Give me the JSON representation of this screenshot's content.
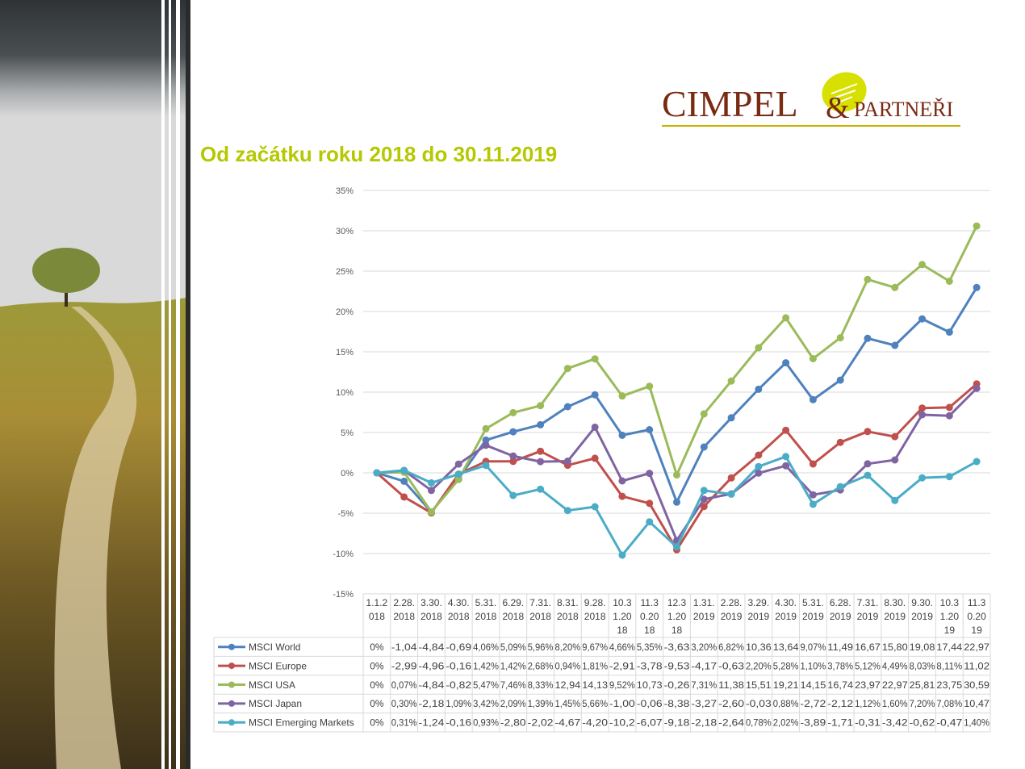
{
  "title": "Od začátku roku 2018 do 30.11.2019",
  "logo": {
    "name_main": "CIMPEL",
    "amp": "&",
    "name_sub": "PARTNEŘI"
  },
  "colors": {
    "accent": "#b5c800",
    "logo_text": "#7a2a12"
  },
  "chart_data": {
    "type": "line",
    "ylim": [
      -15,
      35
    ],
    "y_ticks": [
      "35%",
      "30%",
      "25%",
      "20%",
      "15%",
      "10%",
      "5%",
      "0%",
      "-5%",
      "-10%",
      "-15%"
    ],
    "grid": true,
    "legend": "data-table",
    "categories": [
      [
        "1.1.2",
        "018"
      ],
      [
        "2.28.",
        "2018"
      ],
      [
        "3.30.",
        "2018"
      ],
      [
        "4.30.",
        "2018"
      ],
      [
        "5.31.",
        "2018"
      ],
      [
        "6.29.",
        "2018"
      ],
      [
        "7.31.",
        "2018"
      ],
      [
        "8.31.",
        "2018"
      ],
      [
        "9.28.",
        "2018"
      ],
      [
        "10.3",
        "1.20",
        "18"
      ],
      [
        "11.3",
        "0.20",
        "18"
      ],
      [
        "12.3",
        "1.20",
        "18"
      ],
      [
        "1.31.",
        "2019"
      ],
      [
        "2.28.",
        "2019"
      ],
      [
        "3.29.",
        "2019"
      ],
      [
        "4.30.",
        "2019"
      ],
      [
        "5.31.",
        "2019"
      ],
      [
        "6.28.",
        "2019"
      ],
      [
        "7.31.",
        "2019"
      ],
      [
        "8.30.",
        "2019"
      ],
      [
        "9.30.",
        "2019"
      ],
      [
        "10.3",
        "1.20",
        "19"
      ],
      [
        "11.3",
        "0.20",
        "19"
      ]
    ],
    "series": [
      {
        "name": "MSCI World",
        "color": "#4f81bd",
        "values": [
          0,
          -1.04,
          -4.84,
          -0.69,
          4.06,
          5.09,
          5.96,
          8.2,
          9.67,
          4.66,
          5.35,
          -3.63,
          3.2,
          6.82,
          10.36,
          13.64,
          9.07,
          11.49,
          16.67,
          15.8,
          19.08,
          17.44,
          22.97
        ],
        "labels": [
          "0%",
          "-1,04",
          "-4,84",
          "-0,69",
          "4,06%",
          "5,09%",
          "5,96%",
          "8,20%",
          "9,67%",
          "4,66%",
          "5,35%",
          "-3,63",
          "3,20%",
          "6,82%",
          "10,36",
          "13,64",
          "9,07%",
          "11,49",
          "16,67",
          "15,80",
          "19,08",
          "17,44",
          "22,97"
        ]
      },
      {
        "name": "MSCI Europe",
        "color": "#c0504d",
        "values": [
          0,
          -2.99,
          -4.96,
          -0.16,
          1.42,
          1.42,
          2.68,
          0.94,
          1.81,
          -2.91,
          -3.78,
          -9.53,
          -4.17,
          -0.63,
          2.2,
          5.28,
          1.1,
          3.78,
          5.12,
          4.49,
          8.03,
          8.11,
          11.02
        ],
        "labels": [
          "0%",
          "-2,99",
          "-4,96",
          "-0,16",
          "1,42%",
          "1,42%",
          "2,68%",
          "0,94%",
          "1,81%",
          "-2,91",
          "-3,78",
          "-9,53",
          "-4,17",
          "-0,63",
          "2,20%",
          "5,28%",
          "1,10%",
          "3,78%",
          "5,12%",
          "4,49%",
          "8,03%",
          "8,11%",
          "11,02"
        ]
      },
      {
        "name": "MSCI USA",
        "color": "#9bbb59",
        "values": [
          0,
          0.07,
          -4.84,
          -0.82,
          5.47,
          7.46,
          8.33,
          12.94,
          14.13,
          9.52,
          10.73,
          -0.26,
          7.31,
          11.38,
          15.51,
          19.21,
          14.15,
          16.74,
          23.97,
          22.97,
          25.81,
          23.75,
          30.59
        ],
        "labels": [
          "0%",
          "0,07%",
          "-4,84",
          "-0,82",
          "5,47%",
          "7,46%",
          "8,33%",
          "12,94",
          "14,13",
          "9,52%",
          "10,73",
          "-0,26",
          "7,31%",
          "11,38",
          "15,51",
          "19,21",
          "14,15",
          "16,74",
          "23,97",
          "22,97",
          "25,81",
          "23,75",
          "30,59"
        ]
      },
      {
        "name": "MSCI Japan",
        "color": "#8064a2",
        "values": [
          0,
          0.3,
          -2.18,
          1.09,
          3.42,
          2.09,
          1.39,
          1.45,
          5.66,
          -1.0,
          -0.06,
          -8.38,
          -3.27,
          -2.6,
          -0.03,
          0.88,
          -2.72,
          -2.12,
          1.12,
          1.6,
          7.2,
          7.08,
          10.47
        ],
        "labels": [
          "0%",
          "0,30%",
          "-2,18",
          "1,09%",
          "3,42%",
          "2,09%",
          "1,39%",
          "1,45%",
          "5,66%",
          "-1,00",
          "-0,06",
          "-8,38",
          "-3,27",
          "-2,60",
          "-0,03",
          "0,88%",
          "-2,72",
          "-2,12",
          "1,12%",
          "1,60%",
          "7,20%",
          "7,08%",
          "10,47"
        ]
      },
      {
        "name": "MSCI Emerging Markets",
        "color": "#4bacc6",
        "values": [
          0,
          0.31,
          -1.24,
          -0.16,
          0.93,
          -2.8,
          -2.02,
          -4.67,
          -4.2,
          -10.2,
          -6.07,
          -9.18,
          -2.18,
          -2.64,
          0.78,
          2.02,
          -3.89,
          -1.71,
          -0.31,
          -3.42,
          -0.62,
          -0.47,
          1.4
        ],
        "labels": [
          "0%",
          "0,31%",
          "-1,24",
          "-0,16",
          "0,93%",
          "-2,80",
          "-2,02",
          "-4,67",
          "-4,20",
          "-10,2",
          "-6,07",
          "-9,18",
          "-2,18",
          "-2,64",
          "0,78%",
          "2,02%",
          "-3,89",
          "-1,71",
          "-0,31",
          "-3,42",
          "-0,62",
          "-0,47",
          "1,40%"
        ]
      }
    ]
  }
}
